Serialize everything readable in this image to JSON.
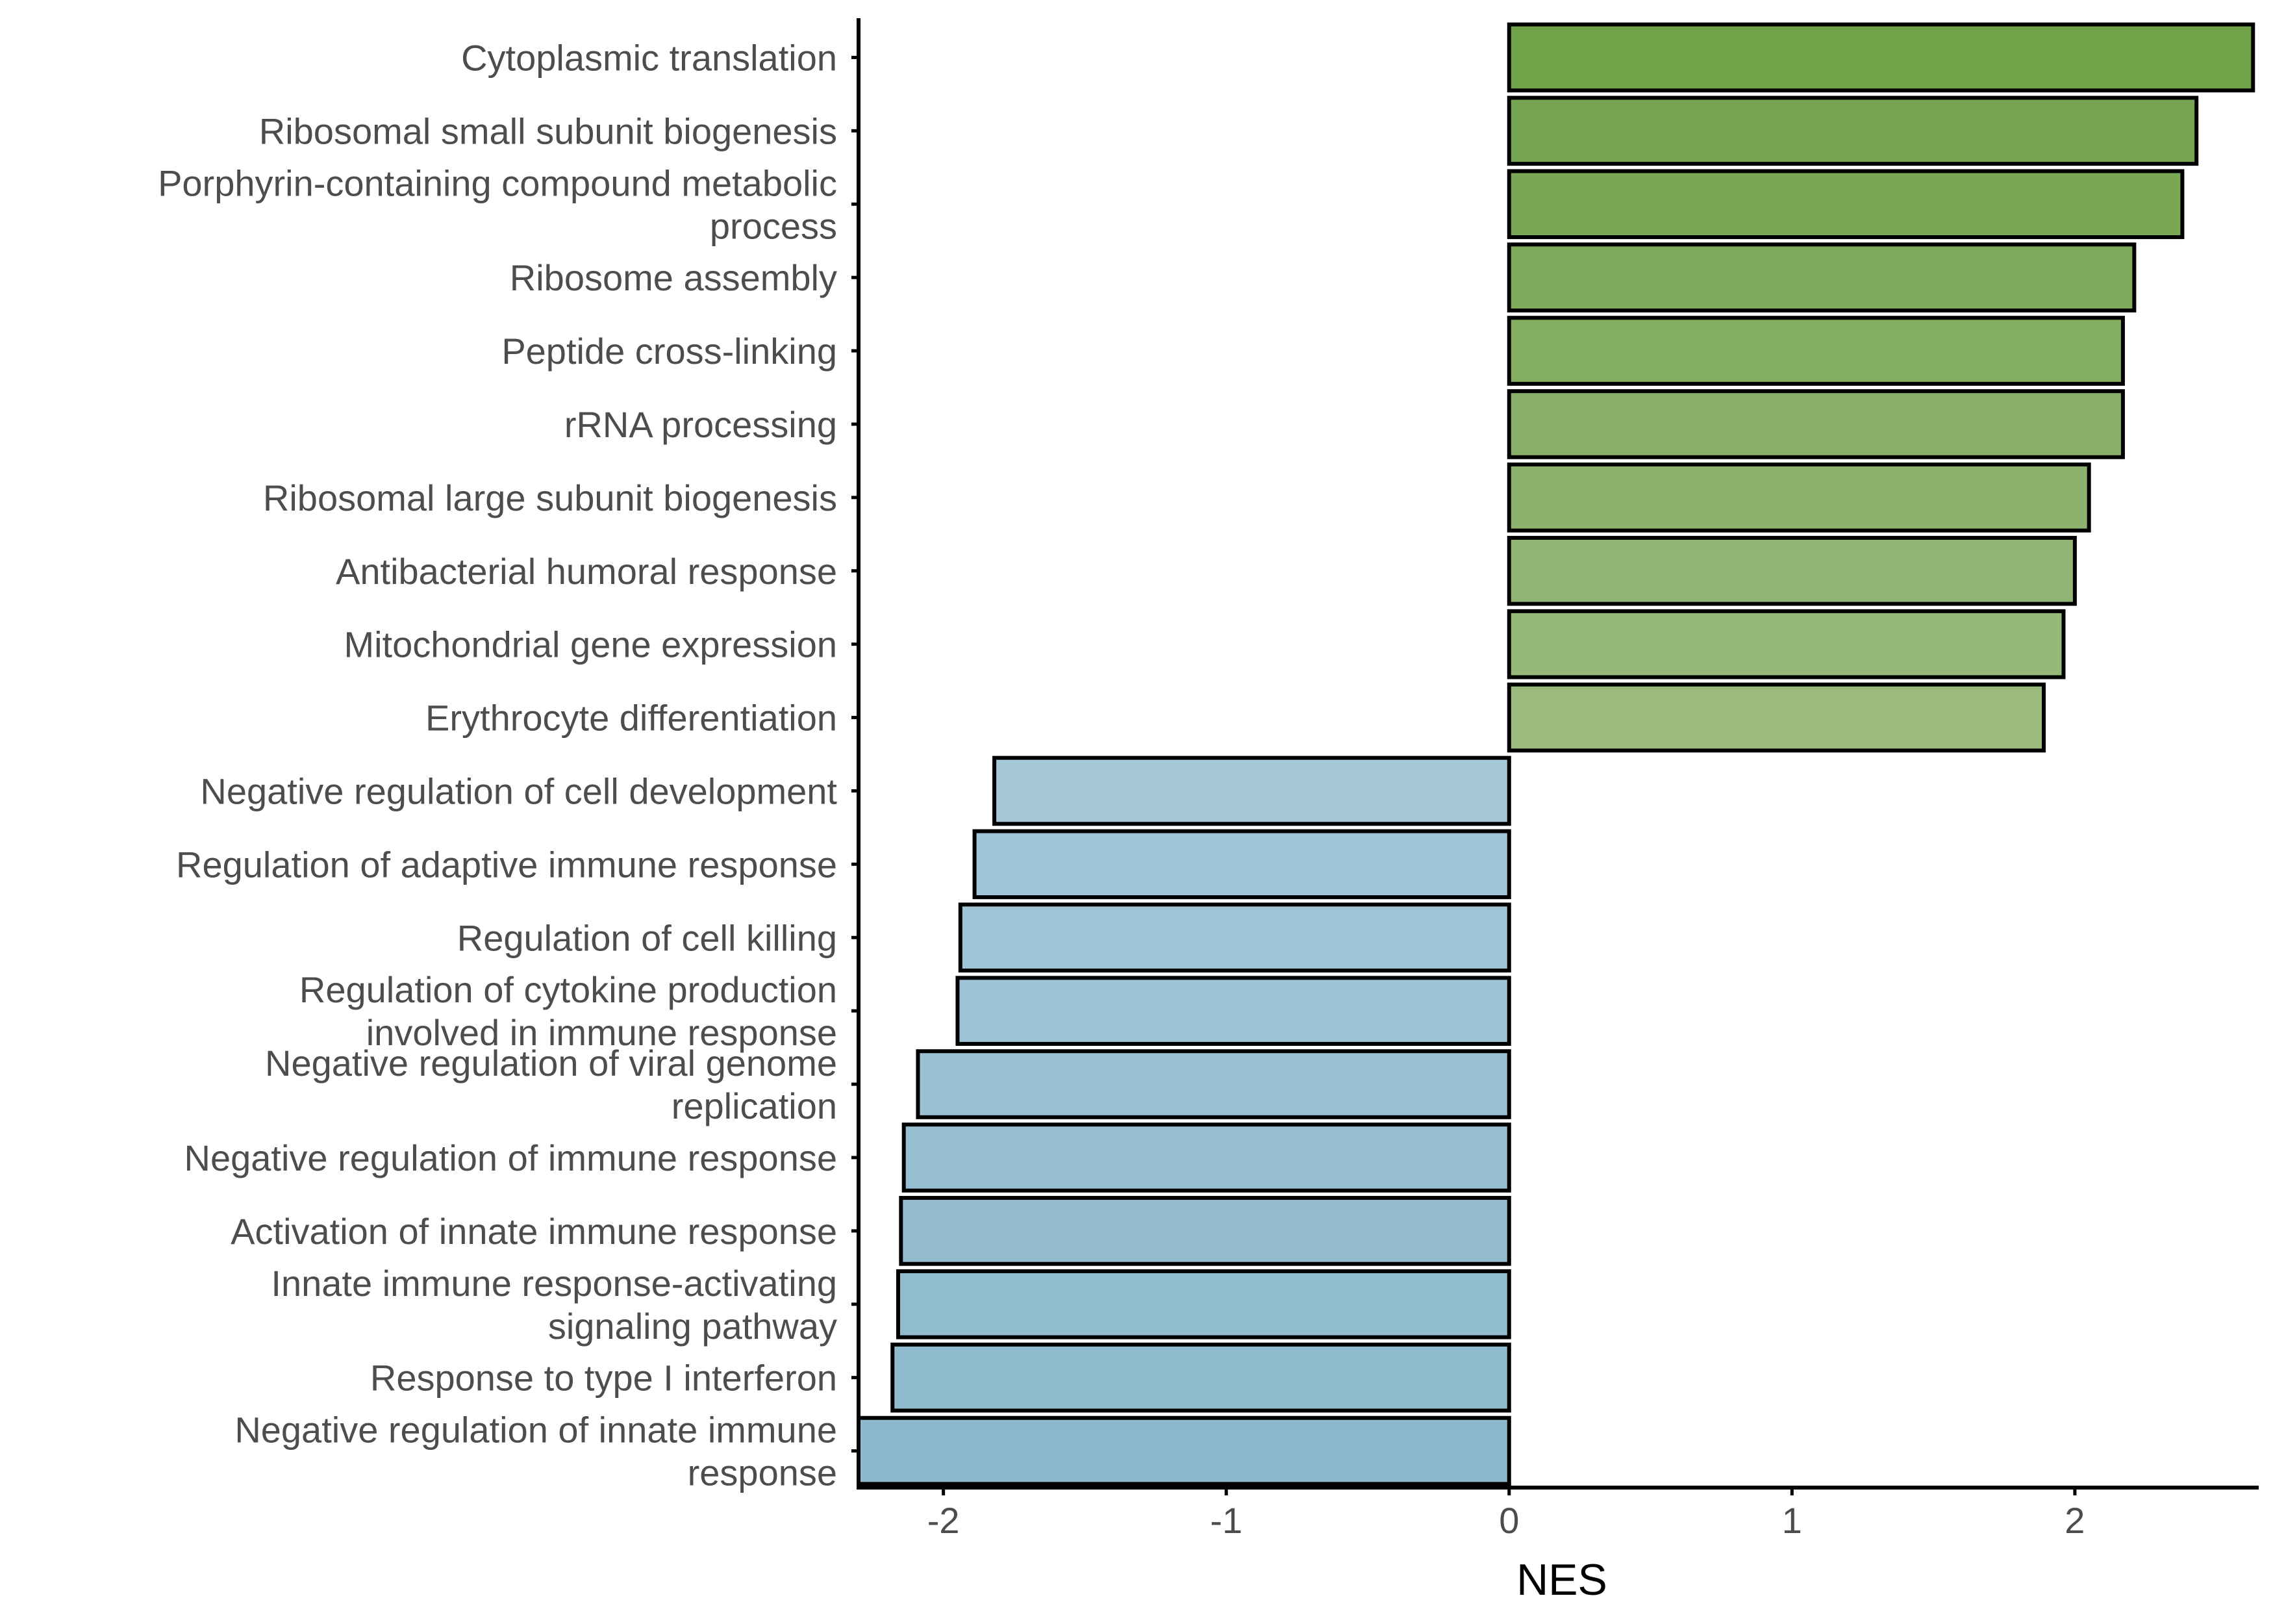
{
  "chart_data": {
    "type": "bar",
    "orientation": "horizontal",
    "xlabel": "NES",
    "ylabel": "",
    "title": "",
    "xlim": [
      -2.3,
      2.65
    ],
    "x_ticks": [
      -2,
      -1,
      0,
      1,
      2
    ],
    "x_tick_labels": [
      "-2",
      "-1",
      "0",
      "1",
      "2"
    ],
    "grid": false,
    "legend": "none",
    "colors": {
      "positive_dark": "#70a24a",
      "positive_light": "#9aba7e",
      "negative_dark": "#8db8cd",
      "negative_light": "#a4c8d8",
      "bar_outline": "#000000",
      "axis": "#000000",
      "tick_text": "#4d4d4d"
    },
    "categories": [
      [
        "Cytoplasmic translation"
      ],
      [
        "Ribosomal small subunit biogenesis"
      ],
      [
        "Porphyrin-containing compound metabolic",
        "process"
      ],
      [
        "Ribosome assembly"
      ],
      [
        "Peptide cross-linking"
      ],
      [
        "rRNA processing"
      ],
      [
        "Ribosomal large subunit biogenesis"
      ],
      [
        "Antibacterial humoral response"
      ],
      [
        "Mitochondrial gene expression"
      ],
      [
        "Erythrocyte differentiation"
      ],
      [
        "Negative regulation of cell development"
      ],
      [
        "Regulation of adaptive immune response"
      ],
      [
        "Regulation of cell killing"
      ],
      [
        "Regulation of cytokine production",
        "involved in immune response"
      ],
      [
        "Negative regulation of viral genome",
        "replication"
      ],
      [
        "Negative regulation of immune response"
      ],
      [
        "Activation of innate immune response"
      ],
      [
        "Innate immune response-activating",
        "signaling pathway"
      ],
      [
        "Response to type I interferon"
      ],
      [
        "Negative regulation of innate immune",
        "response"
      ]
    ],
    "values": [
      2.63,
      2.43,
      2.38,
      2.21,
      2.17,
      2.17,
      2.05,
      2.0,
      1.96,
      1.89,
      -1.82,
      -1.89,
      -1.94,
      -1.95,
      -2.09,
      -2.14,
      -2.15,
      -2.16,
      -2.18,
      -2.3
    ]
  }
}
